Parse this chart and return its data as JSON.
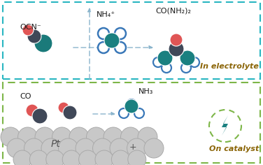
{
  "bg_color": "#ffffff",
  "top_box_color": "#29b6c1",
  "bottom_box_color": "#7db648",
  "top_label": "In electrolyte",
  "bottom_label": "On catalyst",
  "label_color": "#8B6508",
  "ocn_label": "OCN⁻",
  "nh4_label": "NH₄⁺",
  "urea_label": "CO(NH₂)₂",
  "co_label": "CO",
  "nh3_label": "NH₃",
  "pt_label": "Pt",
  "color_red": "#e05555",
  "color_darkgray": "#404858",
  "color_teal": "#1a7a7a",
  "color_blue_ring": "#3a78b8",
  "color_white": "#ffffff",
  "color_teal_dark": "#1a8080",
  "arrow_color": "#8ab4cc",
  "pt_color": "#c8c8c8",
  "pt_border": "#aaaaaa",
  "lightning_color": "#1a8080",
  "lightning_bg": "#ffffff"
}
